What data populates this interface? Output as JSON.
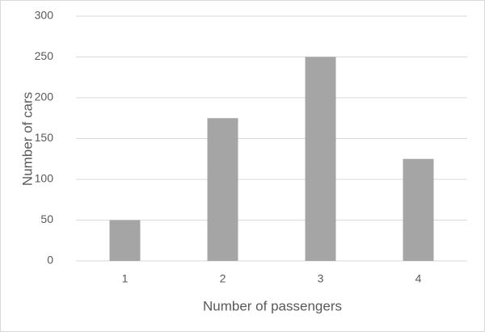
{
  "chart_data": {
    "type": "bar",
    "x_label": "Number of passengers",
    "y_label": "Number of cars",
    "categories": [
      "1",
      "2",
      "3",
      "4"
    ],
    "values": [
      50,
      175,
      250,
      125
    ],
    "color": "#a5a5a5",
    "ylim": [
      0,
      300
    ],
    "yticks": [
      0,
      50,
      100,
      150,
      200,
      250,
      300
    ],
    "grid": true
  }
}
